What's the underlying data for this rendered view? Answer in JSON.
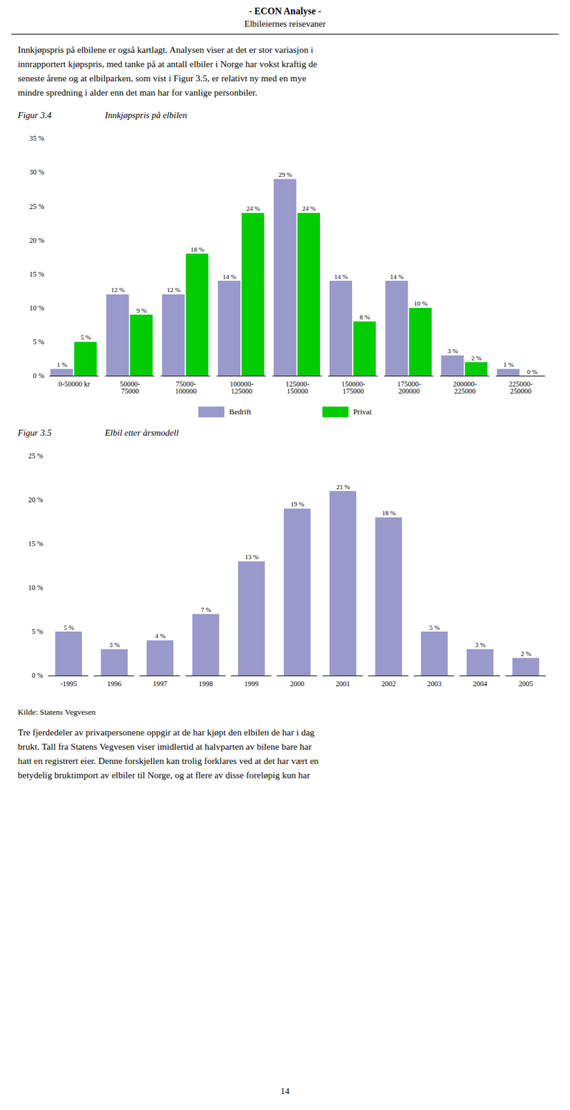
{
  "title": "- ECON Analyse -",
  "subtitle": "Elbileiernes reisevaner",
  "intro": [
    "Innkjøpspris på elbilene er også kartlagt. Analysen viser at det er stor variasjon i",
    "innrapportert kjøpspris, med tanke på at antall elbiler i Norge har vokst kraftig de",
    "seneste årene og at elbilparken, som vist i Figur 3.5, er relativt ny med en mye",
    "mindre spredning i alder enn det man har for vanlige personbiler."
  ],
  "chart_data": [
    {
      "type": "bar",
      "title": "Figur 3.4",
      "subtitle": "Innkjøpspris på elbilen",
      "categories": [
        "0-50000 kr",
        "50000-\n75000",
        "75000-\n100000",
        "100000-\n125000",
        "125000-\n150000",
        "150000-\n175000",
        "175000-\n200000",
        "200000-\n225000",
        "225000-\n250000"
      ],
      "series": [
        {
          "name": "Bedrift",
          "color": "#9999cc",
          "values": [
            1,
            12,
            12,
            14,
            29,
            14,
            14,
            3,
            1
          ],
          "value_labels": [
            "1 %",
            "12 %",
            "12 %",
            "14 %",
            "29 %",
            "14 %",
            "14 %",
            "3 %",
            "1 %"
          ]
        },
        {
          "name": "Privat",
          "color": "#00cc00",
          "values": [
            5,
            9,
            18,
            24,
            24,
            8,
            10,
            2,
            0
          ],
          "value_labels": [
            "5 %",
            "9 %",
            "18 %",
            "24 %",
            "24 %",
            "8 %",
            "10 %",
            "2 %",
            "0 %"
          ]
        }
      ],
      "ylim": [
        0,
        35
      ],
      "yticks": [
        {
          "value": 0,
          "label": "0 %"
        },
        {
          "value": 5,
          "label": "5 %"
        },
        {
          "value": 10,
          "label": "10 %"
        },
        {
          "value": 15,
          "label": "15 %"
        },
        {
          "value": 20,
          "label": "20 %"
        },
        {
          "value": 25,
          "label": "25 %"
        },
        {
          "value": 30,
          "label": "30 %"
        },
        {
          "value": 35,
          "label": "35 %"
        }
      ],
      "grid": false,
      "legend": "bottom",
      "data_labels": true
    },
    {
      "type": "bar",
      "title": "Figur 3.5",
      "subtitle": "Elbil etter årsmodell",
      "categories": [
        "-1995",
        "1996",
        "1997",
        "1998",
        "1999",
        "2000",
        "2001",
        "2002",
        "2003",
        "2004",
        "2005"
      ],
      "values": [
        5,
        3,
        4,
        7,
        13,
        19,
        21,
        18,
        5,
        3,
        2
      ],
      "value_labels": [
        "5 %",
        "3 %",
        "4 %",
        "7 %",
        "13 %",
        "19 %",
        "21 %",
        "18 %",
        "5 %",
        "3 %",
        "2 %"
      ],
      "color": "#9999cc",
      "ylim": [
        0,
        25
      ],
      "yticks": [
        {
          "value": 0,
          "label": "0 %"
        },
        {
          "value": 5,
          "label": "5 %"
        },
        {
          "value": 10,
          "label": "10 %"
        },
        {
          "value": 15,
          "label": "15 %"
        },
        {
          "value": 20,
          "label": "20 %"
        },
        {
          "value": 25,
          "label": "25 %"
        }
      ],
      "grid": false,
      "data_labels": true,
      "annotations": [
        "Kilde: Statens Vegvesen"
      ]
    }
  ],
  "footer": [
    "Tre fjerdedeler av privatpersonene oppgir at de har kjøpt den elbilen de har i dag",
    "brukt. Tall fra Statens Vegvesen viser imidlertid at halvparten av bilene bare har",
    "hatt en registrert eier. Denne forskjellen kan trolig forklares ved at det har vært en",
    "betydelig bruktimport av elbiler til Norge, og at flere av disse foreløpig kun har"
  ],
  "page_number": "14"
}
